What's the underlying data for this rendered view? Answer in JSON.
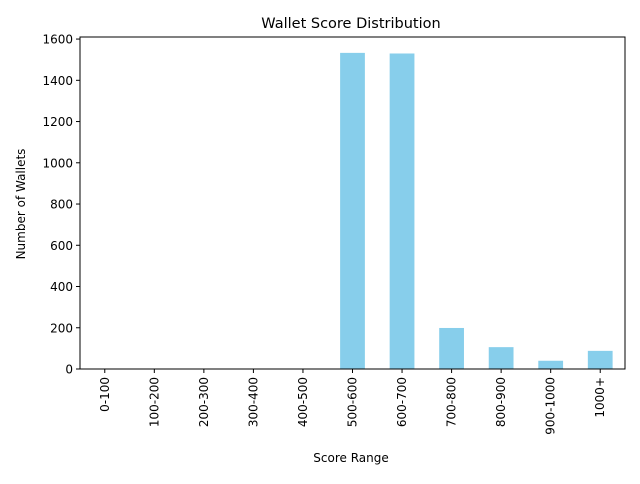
{
  "chart_data": {
    "type": "bar",
    "title": "Wallet Score Distribution",
    "xlabel": "Score Range",
    "ylabel": "Number of Wallets",
    "categories": [
      "0-100",
      "100-200",
      "200-300",
      "300-400",
      "400-500",
      "500-600",
      "600-700",
      "700-800",
      "800-900",
      "900-1000",
      "1000+"
    ],
    "values": [
      0,
      0,
      0,
      0,
      0,
      1533,
      1530,
      199,
      106,
      40,
      88
    ],
    "ylim": [
      0,
      1610
    ],
    "yticks": [
      0,
      200,
      400,
      600,
      800,
      1000,
      1200,
      1400,
      1600
    ],
    "bar_color": "#87ceeb",
    "grid": false,
    "legend": "none"
  }
}
